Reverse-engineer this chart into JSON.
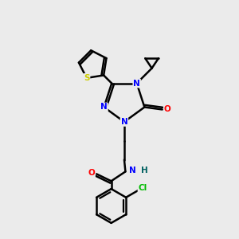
{
  "background_color": "#ebebeb",
  "atom_colors": {
    "N": "#0000ff",
    "O": "#ff0000",
    "S": "#cccc00",
    "Cl": "#00bb00",
    "C": "#000000",
    "H": "#006060"
  },
  "bond_color": "#000000",
  "bond_width": 1.8,
  "figsize": [
    3.0,
    3.0
  ],
  "dpi": 100
}
